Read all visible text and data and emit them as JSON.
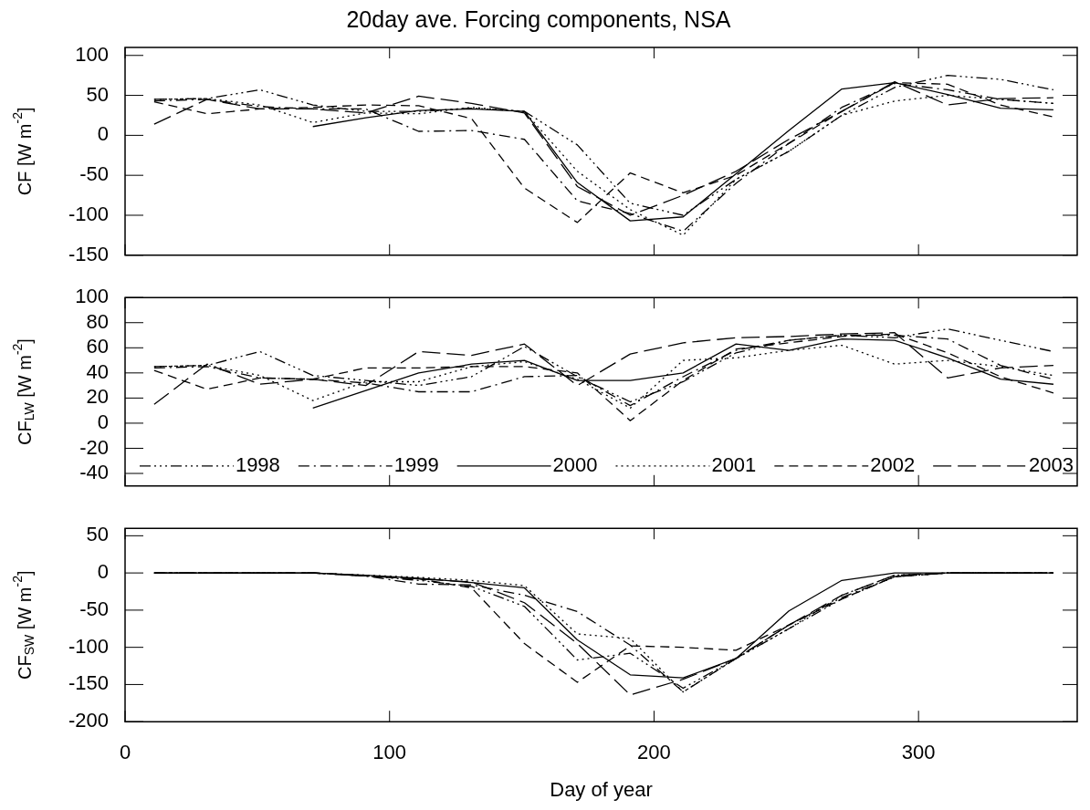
{
  "chart_data": [
    {
      "type": "line",
      "title": "20day ave. Forcing components, NSA",
      "ylabel": "CF [W m$^{-2}$]",
      "x": [
        11,
        31,
        51,
        71,
        91,
        111,
        131,
        151,
        171,
        191,
        211,
        231,
        251,
        271,
        291,
        311,
        331,
        351
      ],
      "xlim": [
        0,
        360
      ],
      "xticks": [
        0,
        100,
        200,
        300
      ],
      "ylim": [
        -150,
        110
      ],
      "yticks": [
        -150,
        -100,
        -50,
        0,
        50,
        100
      ],
      "tick_labels": "y",
      "series": [
        {
          "color": "#000000",
          "line_style": "dashdotdotted",
          "values": [
            45,
            46,
            57,
            38,
            30,
            30,
            34,
            30,
            -12,
            -85,
            -100,
            -55,
            -20,
            25,
            60,
            75,
            70,
            57
          ]
        },
        {
          "color": "#000000",
          "line_style": "dashdot",
          "values": [
            43,
            45,
            36,
            33,
            33,
            5,
            6,
            -5,
            -82,
            -98,
            -120,
            -60,
            -10,
            35,
            65,
            57,
            45,
            40
          ]
        },
        {
          "color": "#000000",
          "line_style": "solid",
          "values": [
            null,
            null,
            null,
            11,
            22,
            31,
            33,
            30,
            -59,
            -107,
            -102,
            -48,
            6,
            58,
            66,
            51,
            34,
            32
          ]
        },
        {
          "color": "#000000",
          "line_style": "dotted",
          "values": [
            45,
            46,
            38,
            16,
            28,
            27,
            35,
            30,
            -45,
            -93,
            -125,
            -55,
            -20,
            25,
            43,
            50,
            45,
            40
          ]
        },
        {
          "color": "#000000",
          "line_style": "dashed",
          "values": [
            42,
            27,
            33,
            35,
            38,
            37,
            21,
            -66,
            -109,
            -47,
            -72,
            -50,
            -10,
            30,
            66,
            64,
            38,
            23
          ]
        },
        {
          "color": "#000000",
          "line_style": "longdashed",
          "values": [
            14,
            45,
            33,
            33,
            28,
            49,
            40,
            28,
            -64,
            -100,
            -75,
            -45,
            -5,
            30,
            67,
            38,
            46,
            47
          ]
        }
      ]
    },
    {
      "type": "line",
      "ylabel": "CF$_{LW}$ [W m$^{-2}$]",
      "x": [
        11,
        31,
        51,
        71,
        91,
        111,
        131,
        151,
        171,
        191,
        211,
        231,
        251,
        271,
        291,
        311,
        331,
        351
      ],
      "xlim": [
        0,
        360
      ],
      "xticks": [
        0,
        100,
        200,
        300
      ],
      "ylim": [
        -50,
        100
      ],
      "yticks": [
        -40,
        -20,
        0,
        20,
        40,
        60,
        80,
        100
      ],
      "tick_labels": "y",
      "legend": "bottom",
      "series": [
        {
          "name": "1998",
          "color": "#000000",
          "line_style": "dashdotdotted",
          "values": [
            45,
            46,
            57,
            38,
            34,
            30,
            37,
            61,
            37,
            17,
            33,
            56,
            66,
            70,
            68,
            75,
            66,
            57
          ]
        },
        {
          "name": "1999",
          "color": "#000000",
          "line_style": "dashdot",
          "values": [
            44,
            45,
            36,
            35,
            32,
            25,
            25,
            37,
            38,
            14,
            37,
            58,
            66,
            70,
            70,
            67,
            46,
            35
          ]
        },
        {
          "name": "2000",
          "color": "#000000",
          "line_style": "solid",
          "values": [
            null,
            null,
            null,
            12,
            26,
            40,
            47,
            50,
            34,
            34,
            40,
            63,
            58,
            67,
            66,
            52,
            35,
            31
          ]
        },
        {
          "name": "2001",
          "color": "#000000",
          "line_style": "dotted",
          "values": [
            45,
            46,
            38,
            18,
            33,
            33,
            45,
            49,
            35,
            12,
            50,
            52,
            58,
            62,
            47,
            50,
            45,
            38
          ]
        },
        {
          "name": "2002",
          "color": "#000000",
          "line_style": "dashed",
          "values": [
            42,
            27,
            36,
            35,
            44,
            44,
            45,
            45,
            40,
            2,
            34,
            59,
            64,
            69,
            71,
            56,
            37,
            24
          ]
        },
        {
          "name": "2003",
          "color": "#000000",
          "line_style": "longdashed",
          "values": [
            15,
            47,
            31,
            35,
            30,
            57,
            54,
            63,
            30,
            55,
            64,
            68,
            69,
            71,
            72,
            36,
            44,
            46
          ]
        }
      ]
    },
    {
      "type": "line",
      "ylabel": "CF$_{SW}$ [W m$^{-2}$]",
      "xlabel": "Day of year",
      "x": [
        11,
        31,
        51,
        71,
        91,
        111,
        131,
        151,
        171,
        191,
        211,
        231,
        251,
        271,
        291,
        311,
        331,
        351
      ],
      "xlim": [
        0,
        360
      ],
      "xticks": [
        0,
        100,
        200,
        300
      ],
      "ylim": [
        -200,
        60
      ],
      "yticks": [
        -200,
        -150,
        -100,
        -50,
        0,
        50
      ],
      "series": [
        {
          "color": "#000000",
          "line_style": "dashdotdotted",
          "values": [
            0,
            0,
            0,
            0,
            -4,
            -10,
            -18,
            -45,
            -117,
            -108,
            -155,
            -115,
            -75,
            -35,
            -5,
            0,
            0,
            0
          ]
        },
        {
          "color": "#000000",
          "line_style": "dashdot",
          "values": [
            0,
            0,
            0,
            0,
            -4,
            -15,
            -16,
            -30,
            -52,
            -97,
            -160,
            -115,
            -70,
            -33,
            -5,
            0,
            0,
            0
          ]
        },
        {
          "color": "#000000",
          "line_style": "solid",
          "values": [
            0,
            0,
            0,
            0,
            -3,
            -7,
            -13,
            -20,
            -90,
            -137,
            -141,
            -115,
            -51,
            -10,
            0,
            0,
            0,
            0
          ]
        },
        {
          "color": "#000000",
          "line_style": "dotted",
          "values": [
            0,
            0,
            0,
            0,
            -3,
            -6,
            -10,
            -17,
            -82,
            -88,
            -160,
            -115,
            -75,
            -30,
            -3,
            0,
            0,
            0
          ]
        },
        {
          "color": "#000000",
          "line_style": "dashed",
          "values": [
            0,
            0,
            0,
            0,
            -4,
            -8,
            -20,
            -95,
            -147,
            -98,
            -100,
            -104,
            -70,
            -35,
            -5,
            0,
            0,
            0
          ]
        },
        {
          "color": "#000000",
          "line_style": "longdashed",
          "values": [
            0,
            0,
            0,
            0,
            -4,
            -8,
            -12,
            -40,
            -95,
            -164,
            -143,
            -115,
            -70,
            -30,
            -3,
            0,
            0,
            0
          ]
        }
      ]
    }
  ]
}
